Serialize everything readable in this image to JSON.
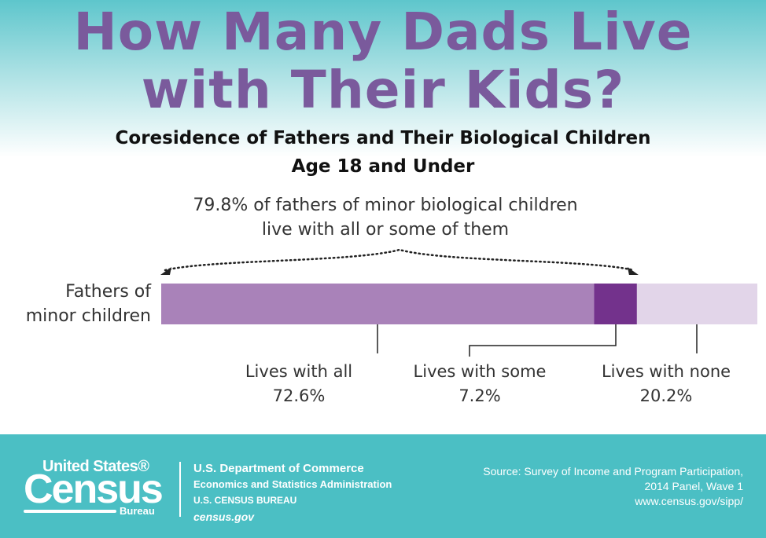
{
  "title": {
    "line1": "How Many Dads Live",
    "line2": "with Their Kids?"
  },
  "subtitle": {
    "line1": "Coresidence of Fathers and Their Biological Children",
    "line2": "Age 18 and Under"
  },
  "chart_data": {
    "type": "bar",
    "orientation": "horizontal-stacked",
    "categories": [
      "Fathers of minor children"
    ],
    "row_label": {
      "line1": "Fathers of",
      "line2": "minor children"
    },
    "annotation": {
      "line1": "79.8% of fathers of minor biological children",
      "line2": "live with all or some of them",
      "value": 79.8
    },
    "unit": "%",
    "segments": [
      {
        "name": "Lives with all",
        "value": 72.6,
        "label": "72.6%",
        "color": "#a982b9"
      },
      {
        "name": "Lives with some",
        "value": 7.2,
        "label": "7.2%",
        "color": "#73328c"
      },
      {
        "name": "Lives with none",
        "value": 20.2,
        "label": "20.2%",
        "color": "#e2d5e9"
      }
    ]
  },
  "footer": {
    "logo": {
      "united_states": "United States®",
      "census": "Census",
      "bureau": "Bureau"
    },
    "dept_line1": "U.S. Department of Commerce",
    "dept_line2": "Economics and Statistics Administration",
    "dept_line3": "U.S. CENSUS BUREAU",
    "dept_line4": "census.gov",
    "source_line1": "Source: Survey of Income and Program Participation,",
    "source_line2": "2014 Panel, Wave 1",
    "source_line3": "www.census.gov/sipp/"
  },
  "colors": {
    "title": "#7a5a9c",
    "footer_bg": "#4bbfc4",
    "header_gradient": "#5ec6cc"
  }
}
